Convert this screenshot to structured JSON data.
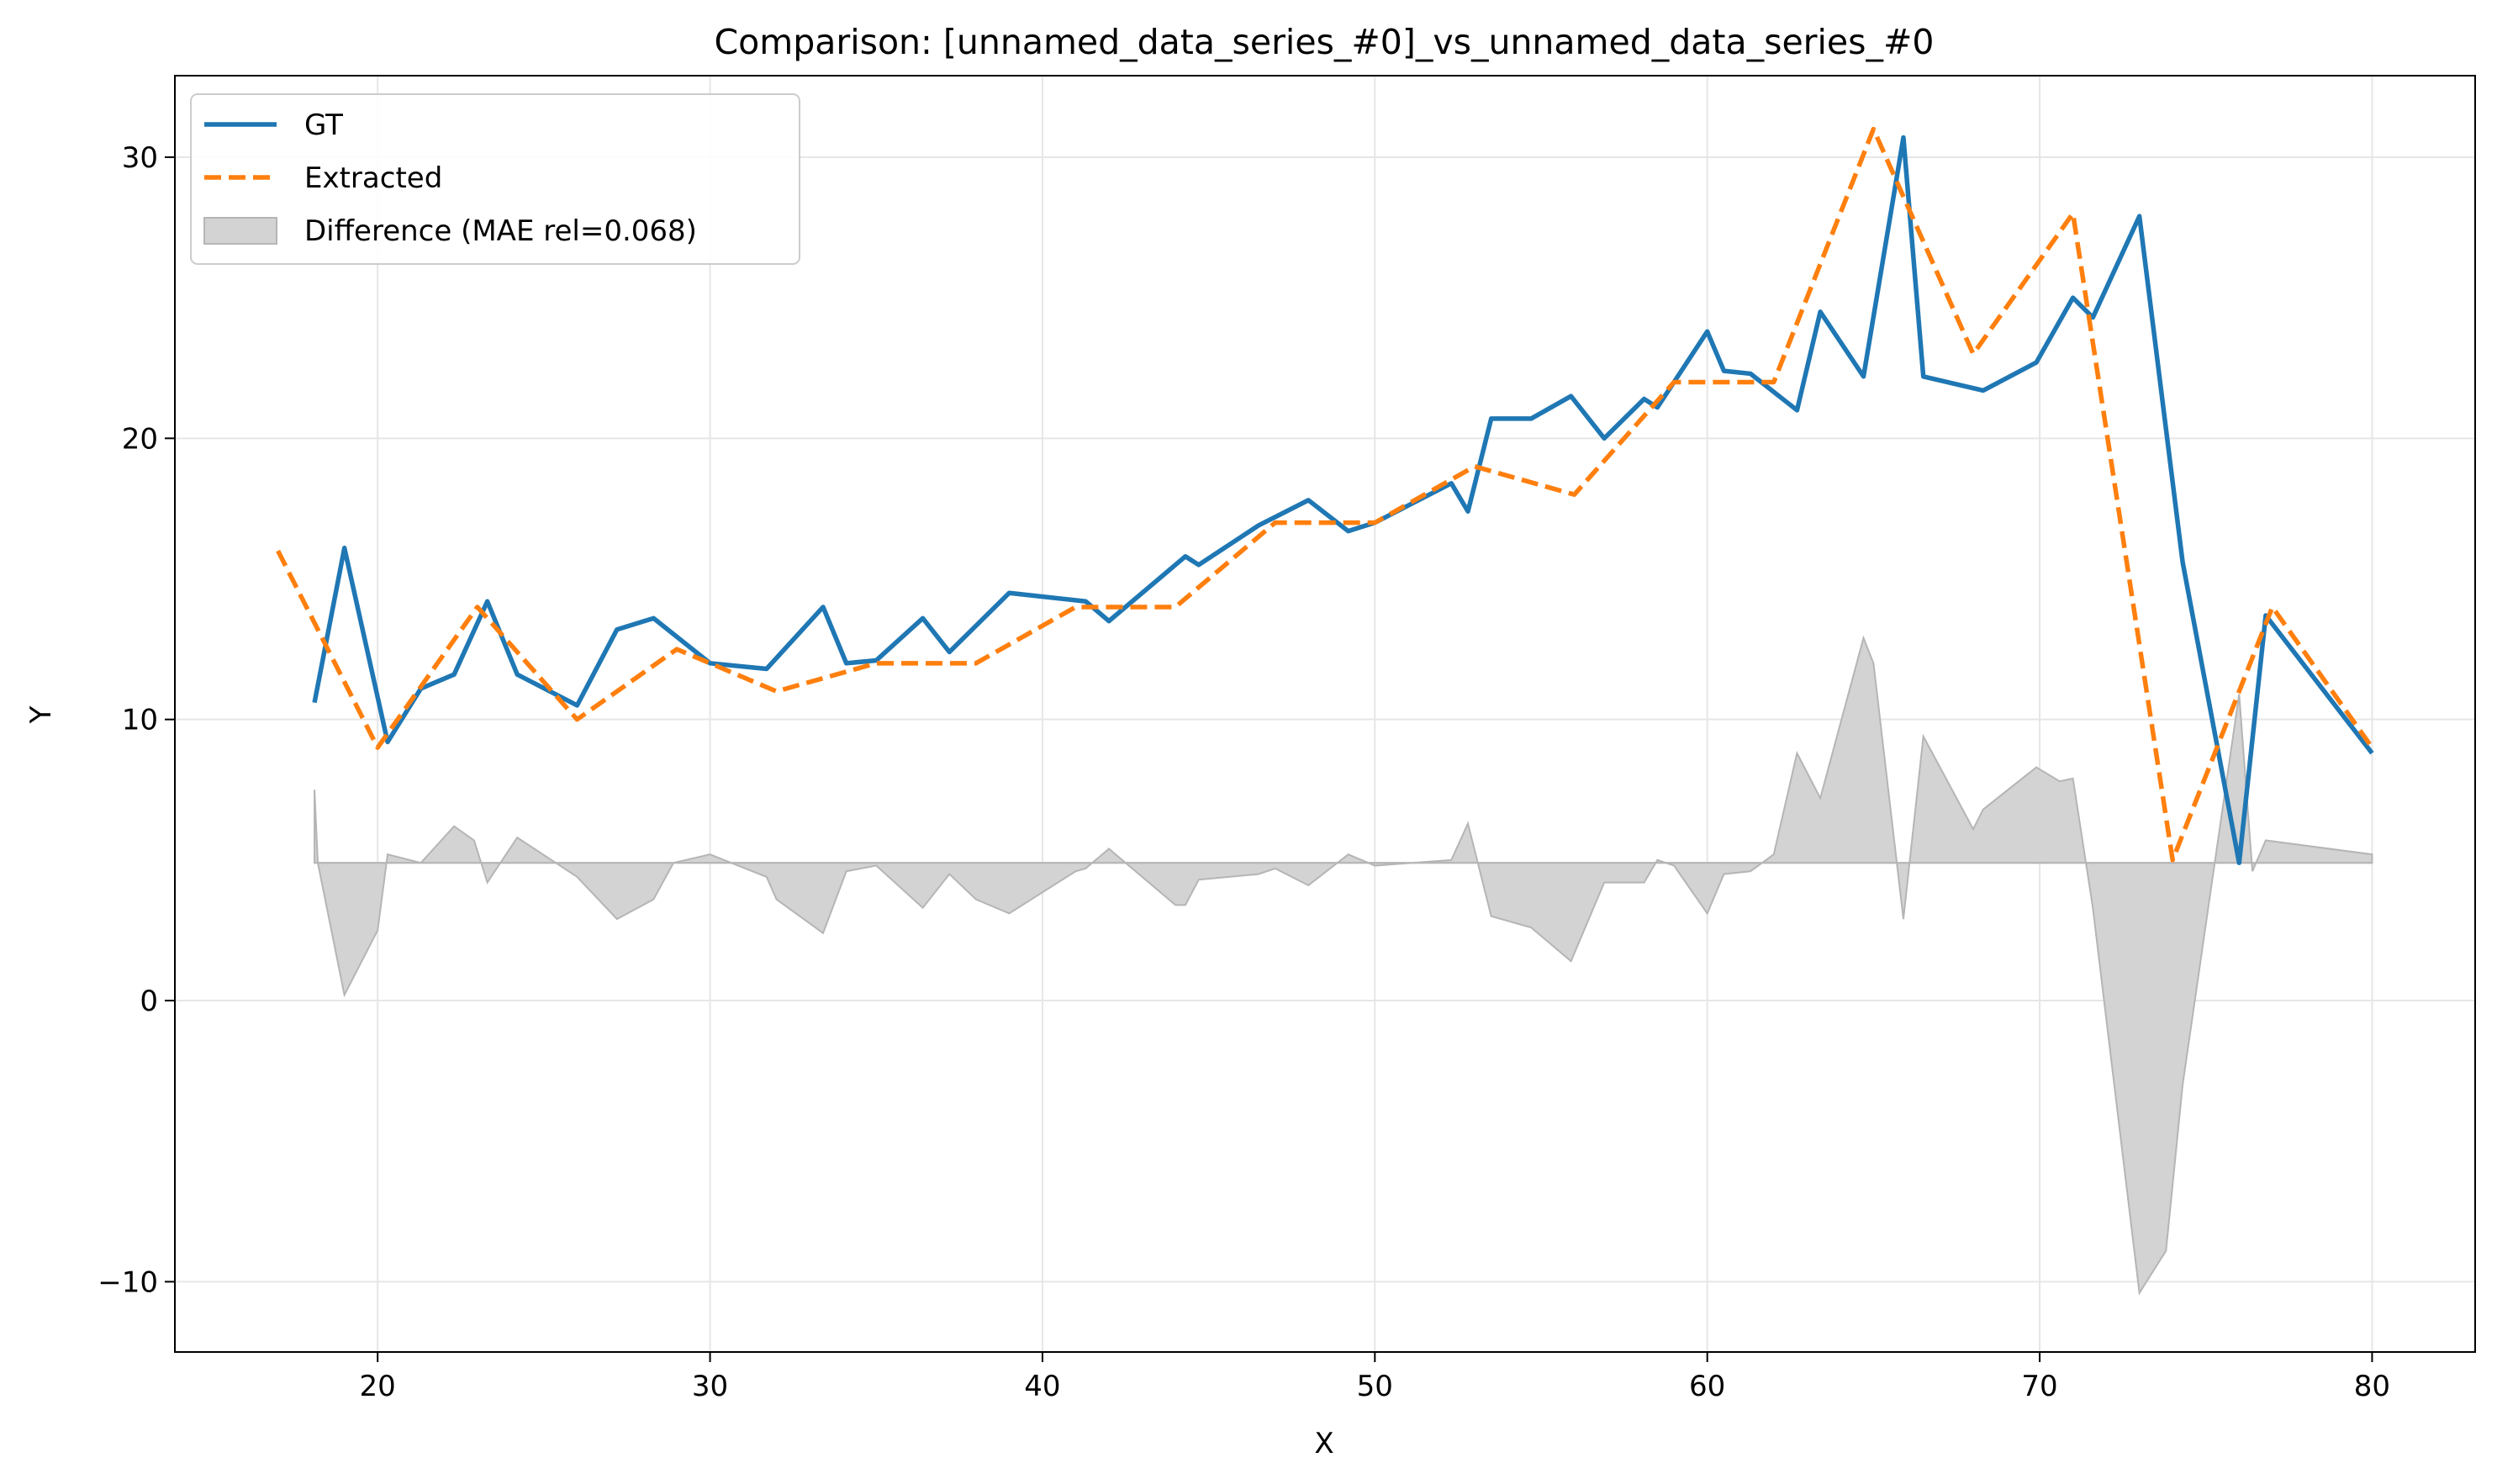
{
  "chart_data": {
    "type": "line",
    "title": "Comparison: [unnamed_data_series_#0]_vs_unnamed_data_series_#0",
    "xlabel": "X",
    "ylabel": "Y",
    "xlim": [
      13.9,
      83.1
    ],
    "ylim": [
      -12.5,
      32.9
    ],
    "xticks": [
      20,
      30,
      40,
      50,
      60,
      70,
      80
    ],
    "yticks": [
      -10,
      0,
      10,
      20,
      30
    ],
    "ytick_labels": [
      "−10",
      "0",
      "10",
      "20",
      "30"
    ],
    "grid": true,
    "legend_position": "top-left",
    "colors": {
      "gt": "#1f77b4",
      "extracted": "#ff7f0e",
      "difference_fill": "#d3d3d3",
      "difference_edge": "#b5b5b5",
      "grid": "#e6e6e6"
    },
    "series": [
      {
        "key": "gt",
        "name": "GT",
        "style": "solid",
        "x": [
          18.1,
          19.0,
          20.3,
          21.3,
          22.3,
          23.3,
          24.2,
          26.0,
          27.2,
          28.3,
          30.0,
          31.7,
          33.4,
          34.1,
          35.0,
          36.4,
          37.2,
          39.0,
          41.3,
          42.0,
          44.3,
          44.7,
          46.5,
          48.0,
          49.2,
          50.0,
          52.3,
          52.8,
          53.5,
          54.7,
          55.9,
          56.9,
          58.1,
          58.5,
          60.0,
          60.5,
          61.3,
          62.7,
          63.4,
          64.7,
          65.9,
          66.5,
          68.3,
          69.9,
          71.0,
          71.6,
          73.0,
          74.3,
          76.0,
          76.8,
          80.0
        ],
        "y": [
          10.6,
          16.1,
          9.2,
          11.1,
          11.6,
          14.2,
          11.6,
          10.5,
          13.2,
          13.6,
          12.0,
          11.8,
          14.0,
          12.0,
          12.1,
          13.6,
          12.4,
          14.5,
          14.2,
          13.5,
          15.8,
          15.5,
          16.9,
          17.8,
          16.7,
          17.0,
          18.4,
          17.4,
          20.7,
          20.7,
          21.5,
          20.0,
          21.4,
          21.1,
          23.8,
          22.4,
          22.3,
          21.0,
          24.5,
          22.2,
          30.7,
          22.2,
          21.7,
          22.7,
          25.0,
          24.3,
          27.9,
          15.6,
          4.9,
          13.7,
          8.8
        ]
      },
      {
        "key": "extracted",
        "name": "Extracted",
        "style": "dashed",
        "x": [
          17.0,
          20.0,
          23.0,
          26.0,
          29.0,
          32.0,
          35.0,
          38.0,
          41.0,
          44.0,
          47.0,
          50.0,
          53.0,
          56.0,
          59.0,
          62.0,
          65.0,
          68.0,
          71.0,
          74.0,
          77.0,
          80.0
        ],
        "y": [
          16.0,
          9.0,
          14.0,
          10.0,
          12.5,
          11.0,
          12.0,
          12.0,
          14.0,
          14.0,
          17.0,
          17.0,
          19.0,
          18.0,
          22.0,
          22.0,
          31.0,
          23.0,
          28.0,
          5.0,
          14.0,
          9.0
        ]
      },
      {
        "key": "difference",
        "name": "Difference (MAE rel=0.068)",
        "style": "fill",
        "baseline": 4.9,
        "x": [
          18.1,
          18.2,
          19.0,
          20.0,
          20.3,
          21.3,
          22.3,
          22.9,
          23.3,
          24.2,
          26.0,
          27.2,
          28.3,
          28.9,
          30.0,
          31.7,
          32.0,
          33.4,
          34.1,
          35.0,
          36.4,
          37.2,
          38.0,
          39.0,
          41.0,
          41.3,
          42.0,
          44.0,
          44.3,
          44.7,
          46.5,
          47.0,
          48.0,
          49.2,
          50.0,
          52.3,
          52.8,
          53.5,
          54.7,
          55.9,
          56.9,
          58.1,
          58.5,
          59.0,
          60.0,
          60.5,
          61.3,
          62.0,
          62.7,
          63.4,
          64.7,
          65.0,
          65.9,
          66.5,
          68.0,
          68.3,
          69.9,
          70.6,
          71.0,
          71.6,
          73.0,
          73.8,
          74.3,
          76.0,
          76.4,
          76.8,
          80.0
        ],
        "y": [
          7.5,
          4.9,
          0.2,
          2.5,
          5.2,
          4.9,
          6.2,
          5.7,
          4.2,
          5.8,
          4.4,
          2.9,
          3.6,
          4.9,
          5.2,
          4.4,
          3.6,
          2.4,
          4.6,
          4.8,
          3.3,
          4.5,
          3.6,
          3.1,
          4.6,
          4.7,
          5.4,
          3.4,
          3.4,
          4.3,
          4.5,
          4.7,
          4.1,
          5.2,
          4.8,
          5.0,
          6.3,
          3.0,
          2.6,
          1.4,
          4.2,
          4.2,
          5.0,
          4.8,
          3.1,
          4.5,
          4.6,
          5.2,
          8.8,
          7.2,
          12.9,
          12.0,
          2.9,
          9.4,
          6.1,
          6.8,
          8.3,
          7.8,
          7.9,
          3.3,
          -10.4,
          -8.9,
          -3.0,
          10.9,
          4.6,
          5.7,
          5.2
        ]
      }
    ]
  }
}
